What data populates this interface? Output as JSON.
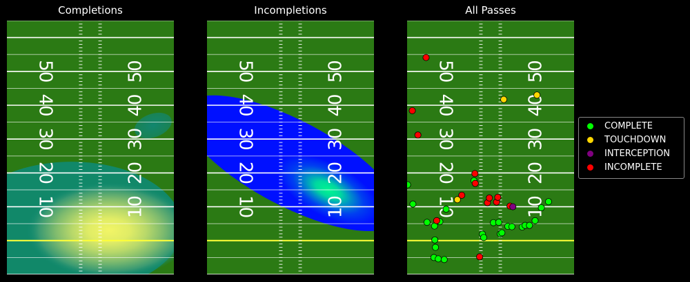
{
  "panels": [
    {
      "title": "Completions"
    },
    {
      "title": "Incompletions"
    },
    {
      "title": "All Passes"
    }
  ],
  "field": {
    "turf_color": "#2b7a14",
    "line_color": "#ffffff",
    "scrimmage_color": "#ffff33",
    "yard_numbers_left": [
      "50",
      "40",
      "30",
      "20",
      "10"
    ],
    "yard_numbers_right": [
      "50",
      "40",
      "30",
      "20",
      "10"
    ]
  },
  "legend": {
    "items": [
      {
        "label": "COMPLETE",
        "color": "#00ff00"
      },
      {
        "label": "TOUCHDOWN",
        "color": "#ffd700"
      },
      {
        "label": "INTERCEPTION",
        "color": "#800080"
      },
      {
        "label": "INCOMPLETE",
        "color": "#ff0000"
      }
    ]
  },
  "chart_data": [
    {
      "type": "heatmap",
      "title": "Completions",
      "description_kind": "kde_density",
      "colormap": "summer",
      "peak_x": 14,
      "peak_y": 0,
      "secondary_peak_x": 19,
      "secondary_peak_y": 35
    },
    {
      "type": "heatmap",
      "title": "Incompletions",
      "description_kind": "kde_density",
      "colormap": "winter",
      "peak_x": 17,
      "peak_y": 14
    },
    {
      "type": "scatter",
      "title": "All Passes",
      "xlim": [
        -26.65,
        26.65
      ],
      "ylim": [
        -10,
        65
      ],
      "series": [
        {
          "name": "COMPLETE",
          "color": "#00ff00",
          "points": [
            [
              -26.5,
              16.5
            ],
            [
              -24.8,
              10.8
            ],
            [
              -20.3,
              5.4
            ],
            [
              -17.8,
              0.2
            ],
            [
              -17.6,
              -2.0
            ],
            [
              -16.2,
              5.6
            ],
            [
              -17.9,
              4.3
            ],
            [
              -18.1,
              -5.0
            ],
            [
              -16.7,
              -5.4
            ],
            [
              -14.8,
              -5.6
            ],
            [
              -14.2,
              9.3
            ],
            [
              -5.3,
              17.7
            ],
            [
              -2.6,
              1.9
            ],
            [
              -2.2,
              0.9
            ],
            [
              0.9,
              5.3
            ],
            [
              2.6,
              5.4
            ],
            [
              3.1,
              2.0
            ],
            [
              3.6,
              2.3
            ],
            [
              5.5,
              4.2
            ],
            [
              6.8,
              4.1
            ],
            [
              10.1,
              4.0
            ],
            [
              11.0,
              4.5
            ],
            [
              12.4,
              4.5
            ],
            [
              14.2,
              5.9
            ],
            [
              16.2,
              9.7
            ],
            [
              18.5,
              11.5
            ]
          ]
        },
        {
          "name": "TOUCHDOWN",
          "color": "#ffd700",
          "points": [
            [
              4.2,
              41.7
            ],
            [
              -10.6,
              12.1
            ],
            [
              14.8,
              43.0
            ]
          ]
        },
        {
          "name": "INCOMPLETE",
          "color": "#ff0000",
          "points": [
            [
              -20.6,
              54.1
            ],
            [
              -25.0,
              38.4
            ],
            [
              -23.2,
              31.2
            ],
            [
              -9.2,
              13.4
            ],
            [
              -17.2,
              5.9
            ],
            [
              -5.0,
              19.8
            ],
            [
              -4.9,
              16.9
            ],
            [
              -1.0,
              11.2
            ],
            [
              -0.4,
              12.6
            ],
            [
              1.9,
              11.4
            ],
            [
              2.3,
              12.8
            ],
            [
              6.2,
              10.2
            ],
            [
              -3.5,
              -4.8
            ]
          ]
        },
        {
          "name": "INTERCEPTION",
          "color": "#800080",
          "points": [
            [
              7.1,
              10.0
            ]
          ]
        }
      ]
    }
  ]
}
